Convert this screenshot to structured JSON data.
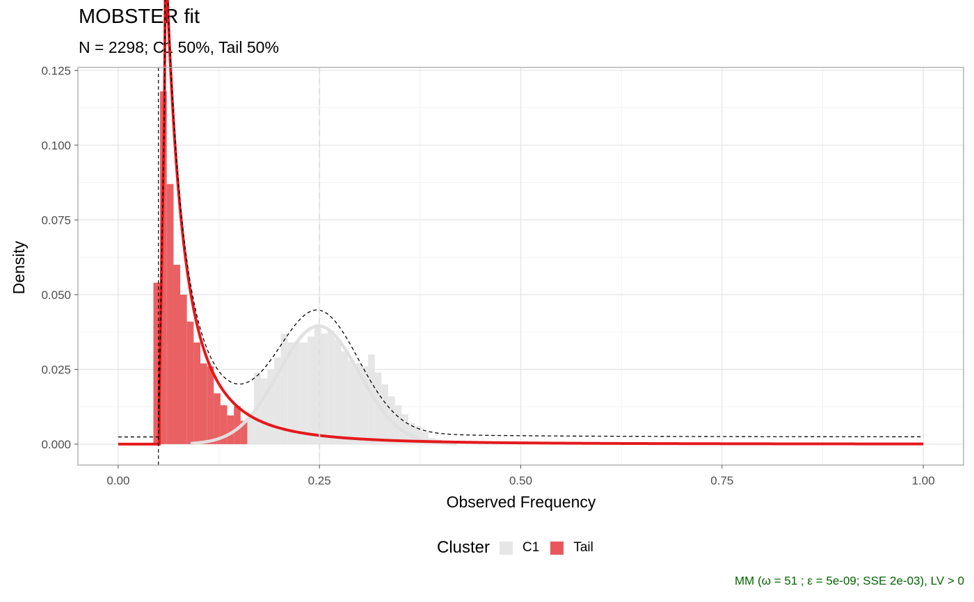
{
  "title": "MOBSTER fit",
  "subtitle": "N = 2298; C1 50%, Tail 50%",
  "caption": "MM (ω = 51 ; ε = 5e-09; SSE 2e-03), LV > 0",
  "legend": {
    "title": "Cluster",
    "items": [
      {
        "label": "C1",
        "color": "#e6e6e6"
      },
      {
        "label": "Tail",
        "color": "#e8585b"
      }
    ]
  },
  "chart_data": {
    "type": "bar",
    "title": "MOBSTER fit",
    "subtitle": "N = 2298; C1 50%, Tail 50%",
    "xlabel": "Observed Frequency",
    "ylabel": "Density",
    "xlim": [
      -0.05,
      1.05
    ],
    "ylim": [
      -0.007,
      0.126
    ],
    "x_ticks": [
      0,
      0.25,
      0.5,
      0.75,
      1
    ],
    "x_tick_labels": [
      "0.00",
      "0.25",
      "0.50",
      "0.75",
      "1.00"
    ],
    "y_ticks": [
      0,
      0.025,
      0.05,
      0.075,
      0.1,
      0.125
    ],
    "y_tick_labels": [
      "0.000",
      "0.025",
      "0.050",
      "0.075",
      "0.100",
      "0.125"
    ],
    "grid": true,
    "legend_position": "bottom",
    "bin_width": 0.00833,
    "series": [
      {
        "name": "Tail",
        "color": "#e8585b",
        "x": [
          0.0479,
          0.0562,
          0.0646,
          0.0729,
          0.0812,
          0.0896,
          0.0979,
          0.1062,
          0.1146,
          0.1229,
          0.1312,
          0.1396,
          0.1479,
          0.1562
        ],
        "values": [
          0.054,
          0.118,
          0.087,
          0.06,
          0.05,
          0.041,
          0.034,
          0.027,
          0.026,
          0.017,
          0.013,
          0.0096,
          0.0127,
          0.0078
        ]
      },
      {
        "name": "C1",
        "color": "#e6e6e6",
        "x": [
          0.1646,
          0.1729,
          0.1812,
          0.1896,
          0.1979,
          0.2062,
          0.2146,
          0.2229,
          0.2312,
          0.2396,
          0.2479,
          0.2562,
          0.2646,
          0.2729,
          0.2812,
          0.2896,
          0.2979,
          0.3062,
          0.3146,
          0.3229,
          0.3312,
          0.3396,
          0.3479,
          0.3562,
          0.3646,
          0.3729,
          0.3812,
          0.3896,
          0.3979
        ],
        "values": [
          0.0105,
          0.024,
          0.022,
          0.025,
          0.029,
          0.037,
          0.034,
          0.034,
          0.034,
          0.036,
          0.04,
          0.037,
          0.038,
          0.035,
          0.031,
          0.028,
          0.027,
          0.026,
          0.03,
          0.024,
          0.02,
          0.016,
          0.013,
          0.01,
          0.007,
          0.006,
          0.004,
          0.002,
          0.0015
        ]
      }
    ],
    "density_curves": [
      {
        "name": "Tail",
        "color": "#e3191c",
        "type": "pareto",
        "xmin": 0.05,
        "shape": 1.8,
        "weight": 0.5
      },
      {
        "name": "C1",
        "color": "#e0e0e0",
        "type": "beta",
        "mean": 0.249,
        "sd": 0.05,
        "weight": 0.5
      }
    ],
    "vertical_lines": [
      {
        "x": 0.05,
        "style": "dashed",
        "color": "#000000"
      },
      {
        "x": 0.25,
        "style": "dashed",
        "color": "#e0e0e0"
      }
    ]
  }
}
